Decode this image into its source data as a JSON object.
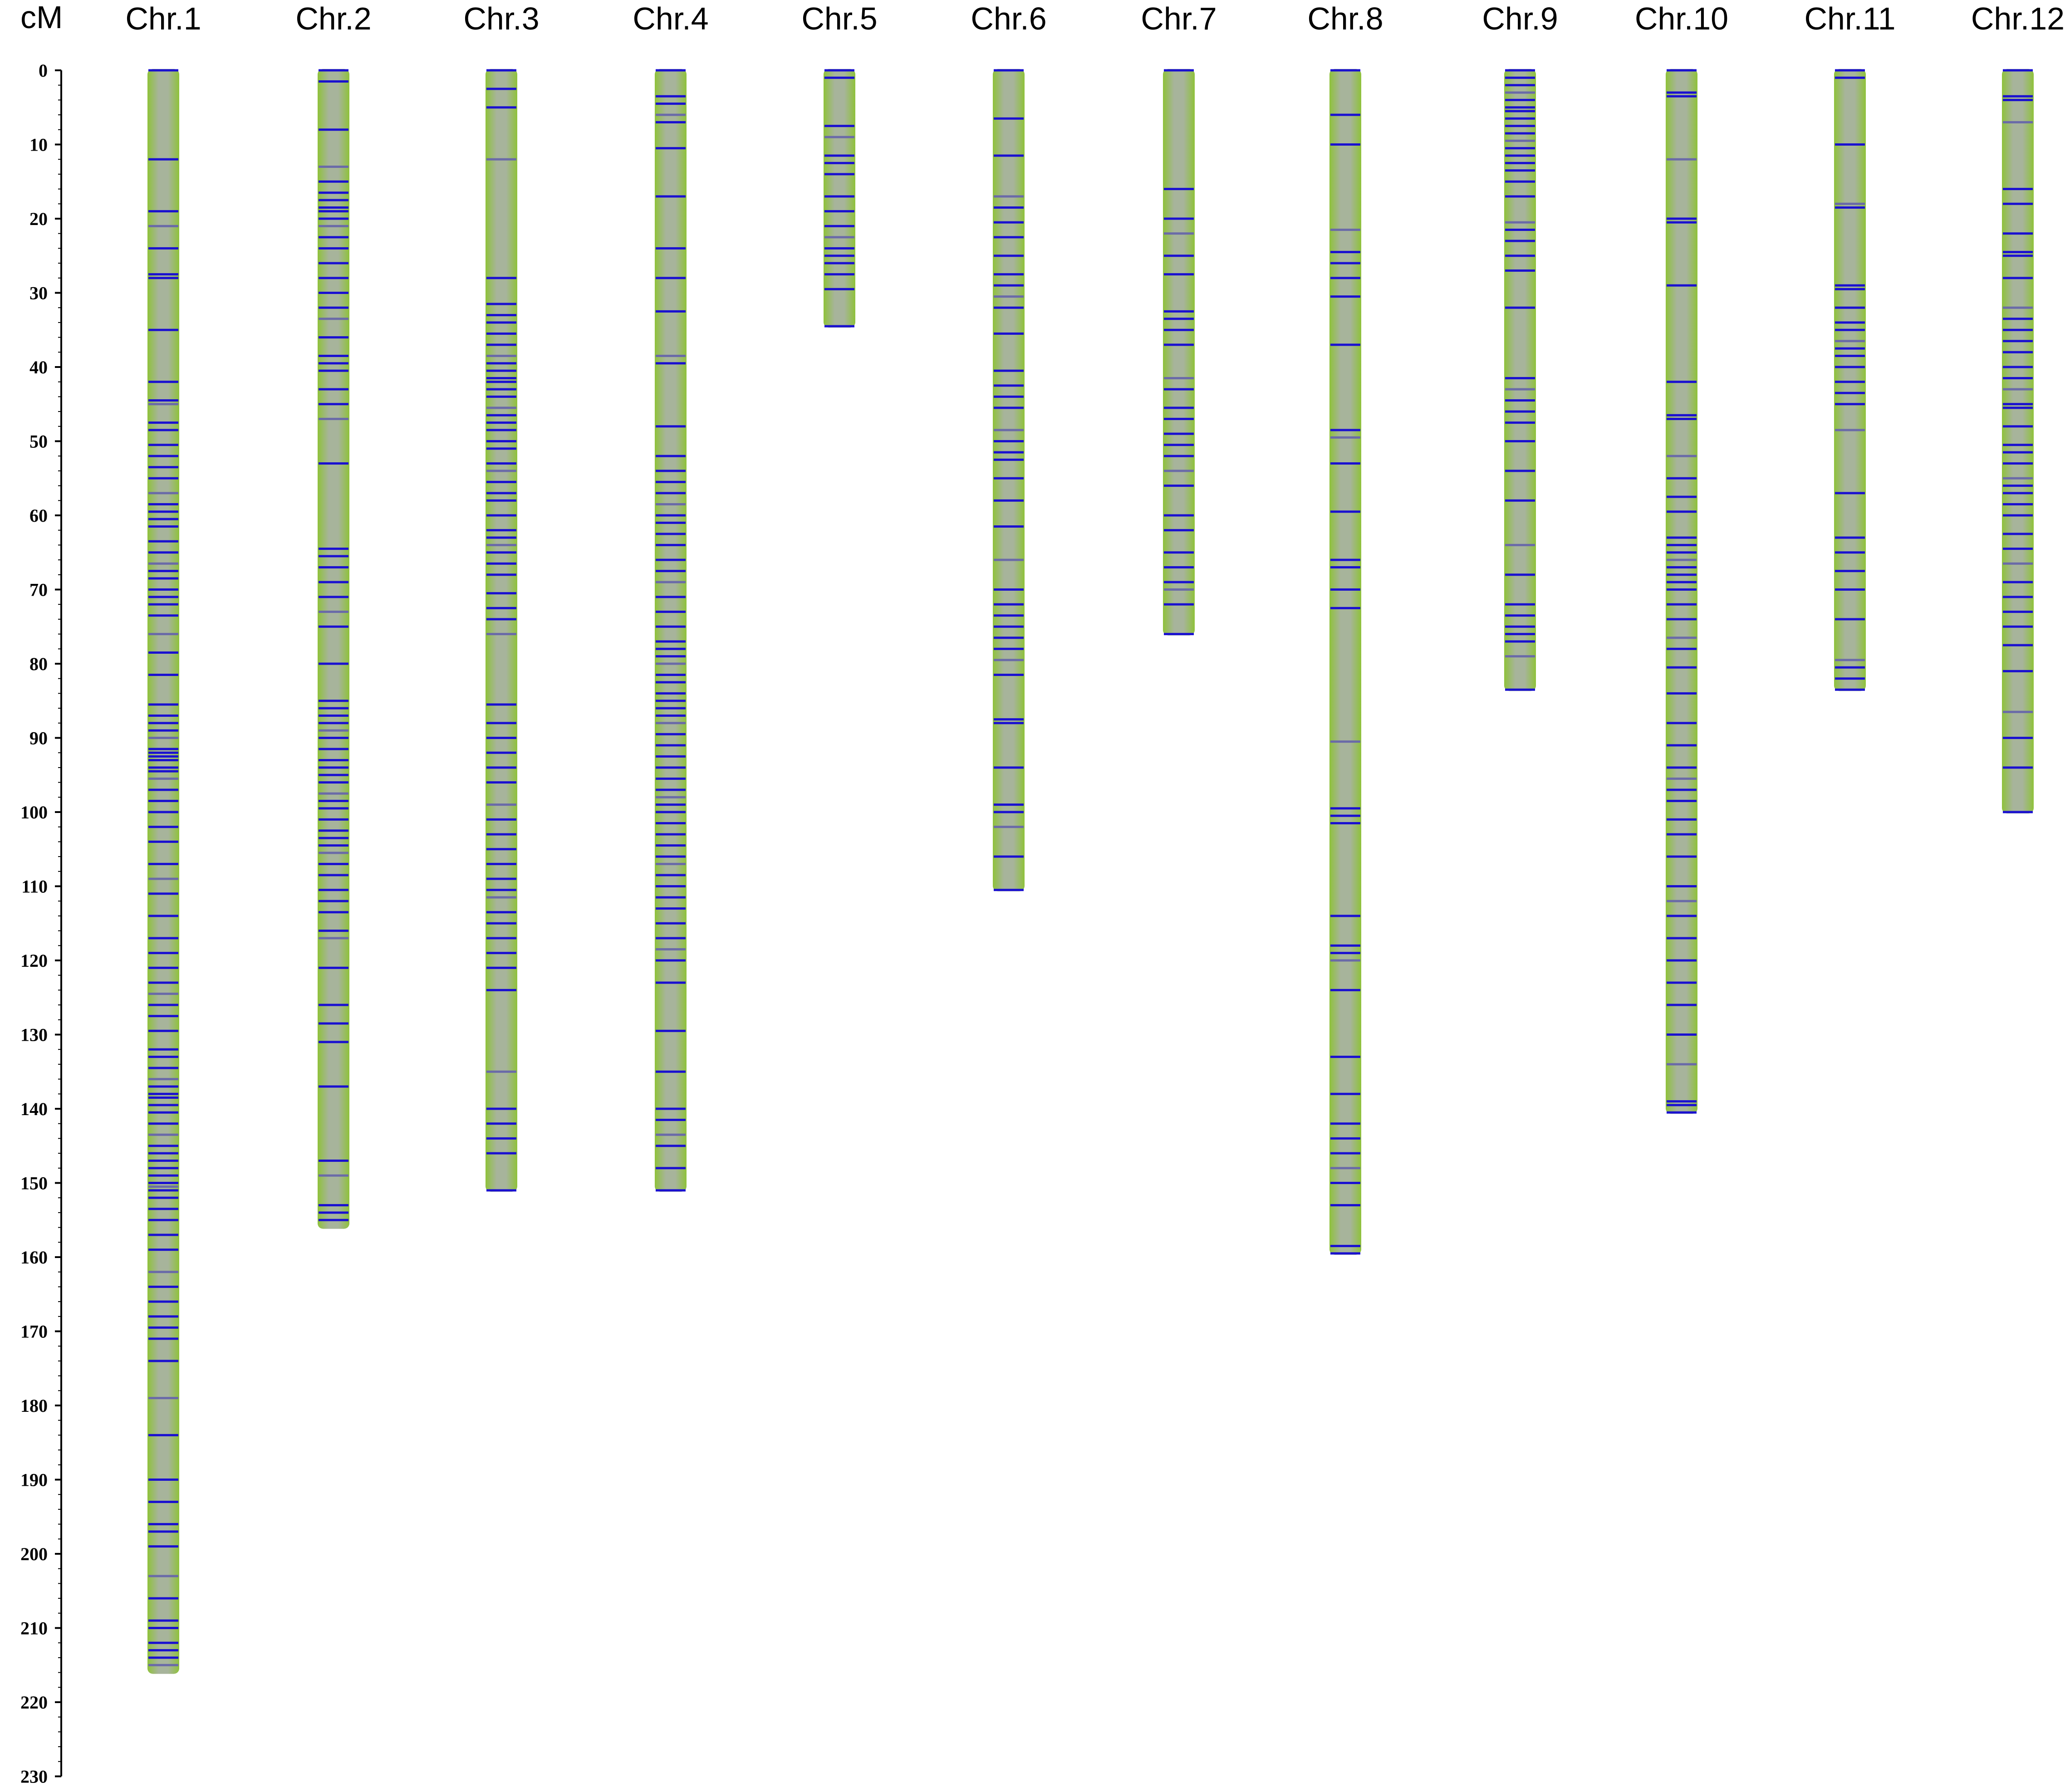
{
  "axis": {
    "unit_label": "cM",
    "ticks": [
      0,
      10,
      20,
      30,
      40,
      50,
      60,
      70,
      80,
      90,
      100,
      110,
      120,
      130,
      140,
      150,
      160,
      170,
      180,
      190,
      200,
      210,
      220,
      230
    ],
    "range": [
      0,
      230
    ]
  },
  "colors": {
    "chromosome_body": "#8fbf3f",
    "chromosome_core": "#a9b3a0",
    "marker": "#1a10d0",
    "marker_faint": "#6a6aa8",
    "axis": "#000000"
  },
  "chart_data": {
    "type": "chromosome_map",
    "unit": "cM",
    "chromosomes": [
      {
        "label": "Chr.1",
        "length": 216,
        "markers": [
          0,
          12,
          19,
          21,
          24,
          27.5,
          28,
          35,
          42,
          44.5,
          45,
          47.5,
          48.5,
          50.5,
          52,
          53.5,
          55,
          57,
          58.5,
          59.5,
          60.5,
          61.5,
          63.5,
          65,
          66.5,
          67.5,
          68.5,
          70,
          71,
          72,
          73.5,
          76,
          78.5,
          81.5,
          85.5,
          87,
          88,
          89,
          90,
          91.5,
          92,
          92.5,
          93,
          94,
          94.5,
          95.5,
          97,
          98.5,
          100,
          102,
          104,
          107,
          109,
          111,
          114,
          117,
          119,
          121,
          123,
          124.5,
          126,
          127.5,
          129.5,
          132,
          133,
          134.5,
          136,
          137,
          138,
          138.5,
          139.5,
          140.5,
          142,
          143.5,
          145,
          146,
          147,
          148,
          149,
          150,
          150.5,
          151,
          152,
          153.5,
          155,
          157,
          159,
          162,
          164,
          166,
          168,
          169.5,
          171,
          174,
          179,
          184,
          190,
          193,
          196,
          197,
          199,
          203,
          206,
          209,
          210,
          212,
          213,
          214,
          215
        ]
      },
      {
        "label": "Chr.2",
        "length": 156,
        "markers": [
          0,
          1.5,
          8,
          13,
          15,
          16.5,
          17.5,
          18.5,
          19,
          20,
          21,
          22.5,
          24,
          26,
          28,
          30,
          32,
          33.5,
          36,
          38.5,
          39.5,
          40.5,
          43,
          45,
          47,
          53,
          64.5,
          65.5,
          67,
          69,
          71,
          73,
          75,
          80,
          85,
          86,
          87,
          88,
          89,
          90,
          91.5,
          93,
          94,
          95,
          96,
          97.5,
          98.5,
          99.5,
          101,
          102.5,
          103.5,
          104.5,
          105.5,
          107,
          108.5,
          110.5,
          112,
          113.5,
          116,
          117,
          121,
          126,
          128.5,
          131,
          137,
          147,
          149,
          153,
          154,
          155
        ]
      },
      {
        "label": "Chr.3",
        "length": 151,
        "markers": [
          0,
          2.5,
          5,
          12,
          28,
          31.5,
          33,
          34,
          35.5,
          37,
          38.5,
          39.5,
          40.5,
          41.5,
          42,
          43,
          44,
          45.5,
          46.5,
          47.5,
          48.5,
          50,
          51,
          53,
          54,
          55.5,
          57,
          58,
          60,
          62,
          63,
          64,
          65,
          66.5,
          68,
          70.5,
          72.5,
          74,
          76,
          85.5,
          88,
          90,
          92,
          94,
          96,
          99,
          101,
          103,
          105,
          107,
          109,
          110.5,
          111.5,
          113.5,
          115,
          117,
          119,
          121,
          124,
          135,
          140,
          142,
          144,
          146,
          151
        ]
      },
      {
        "label": "Chr.4",
        "length": 151,
        "markers": [
          0,
          3.5,
          4.5,
          6,
          7,
          10.5,
          17,
          24,
          28,
          32.5,
          38.5,
          39.5,
          48,
          52,
          54,
          55.5,
          57,
          58.5,
          60,
          61,
          62.5,
          64,
          66,
          67.5,
          69,
          71,
          73,
          75,
          77,
          78,
          79,
          80,
          81.5,
          82.5,
          84,
          85,
          86,
          87,
          88,
          89.5,
          91,
          92.5,
          94,
          95.5,
          97,
          98,
          99,
          100,
          101.5,
          103,
          104.5,
          106,
          107,
          108.5,
          110,
          111.5,
          113,
          115,
          117,
          118.5,
          120,
          123,
          129.5,
          135,
          140,
          141.5,
          143.5,
          145,
          148,
          151
        ]
      },
      {
        "label": "Chr.5",
        "length": 34.5,
        "markers": [
          0,
          1,
          7.5,
          9,
          11.5,
          12.5,
          14,
          17,
          19,
          21,
          22.5,
          24,
          25,
          26,
          27.5,
          29.5,
          34.5
        ]
      },
      {
        "label": "Chr.6",
        "length": 110.5,
        "markers": [
          0,
          6.5,
          11.5,
          17,
          18.5,
          20.5,
          22.5,
          25,
          27.5,
          29,
          30.5,
          32,
          35.5,
          40.5,
          42.5,
          44,
          45.5,
          48.5,
          50,
          51.5,
          52.5,
          55,
          58,
          61.5,
          66,
          70,
          72,
          73.5,
          75,
          76.5,
          78,
          79.5,
          81.5,
          87.5,
          88,
          94,
          99,
          100,
          102,
          106,
          110.5
        ]
      },
      {
        "label": "Chr.7",
        "length": 76,
        "markers": [
          0,
          16,
          20,
          22,
          25,
          27.5,
          32.5,
          33.5,
          35,
          37,
          41.5,
          43,
          45.5,
          47,
          49,
          50.5,
          52,
          54,
          56,
          60,
          62,
          65,
          67,
          69,
          70,
          72,
          76
        ]
      },
      {
        "label": "Chr.8",
        "length": 159.5,
        "markers": [
          0,
          6,
          10,
          21.5,
          24.5,
          26,
          28,
          30.5,
          37,
          48.5,
          49.5,
          53,
          59.5,
          66,
          67,
          70,
          72.5,
          90.5,
          99.5,
          100.5,
          101.5,
          114,
          118,
          119,
          120,
          124,
          133,
          138,
          142,
          144,
          146,
          148,
          150,
          153,
          158.5,
          159.5
        ]
      },
      {
        "label": "Chr.9",
        "length": 83.5,
        "markers": [
          0,
          1,
          2,
          3,
          4,
          5,
          5.5,
          6.5,
          7.5,
          8.5,
          9.5,
          10.5,
          11.5,
          12.5,
          13.5,
          15,
          17,
          20.5,
          21.5,
          23,
          25,
          27,
          32,
          41.5,
          43,
          44.5,
          46,
          47.5,
          50,
          54,
          58,
          64,
          68,
          72,
          73.5,
          75,
          76,
          77,
          79,
          83.5
        ]
      },
      {
        "label": "Chr.10",
        "length": 140.5,
        "markers": [
          0,
          3,
          3.5,
          12,
          20,
          20.5,
          29,
          42,
          46.5,
          47,
          52,
          55,
          57.5,
          59.5,
          63,
          64,
          65,
          66,
          67,
          68,
          69,
          70,
          72,
          74,
          76.5,
          78,
          80.5,
          84,
          88,
          91,
          94,
          95.5,
          97,
          98.5,
          101,
          103,
          106,
          110,
          112,
          114,
          117,
          120,
          123,
          126,
          130,
          134,
          139,
          139.5,
          140.5
        ]
      },
      {
        "label": "Chr.11",
        "length": 83.5,
        "markers": [
          0,
          1,
          10,
          18,
          18.5,
          29,
          29.5,
          32,
          34,
          35,
          36.5,
          37.5,
          38.5,
          40,
          42,
          43.5,
          45,
          48.5,
          57,
          63,
          65,
          67.5,
          70,
          74,
          79.5,
          80.5,
          82,
          83.5
        ]
      },
      {
        "label": "Chr.12",
        "length": 100,
        "markers": [
          0,
          3.5,
          4,
          7,
          16,
          18,
          22,
          24.5,
          25,
          28,
          32,
          33.5,
          35,
          36.5,
          38,
          40,
          41.5,
          43,
          45,
          45.5,
          48,
          50.5,
          51.5,
          53,
          55,
          56,
          57,
          58.5,
          60,
          62.5,
          64.5,
          66.5,
          69,
          71,
          73,
          75,
          77.5,
          81,
          86.5,
          90,
          94,
          100
        ]
      }
    ]
  }
}
